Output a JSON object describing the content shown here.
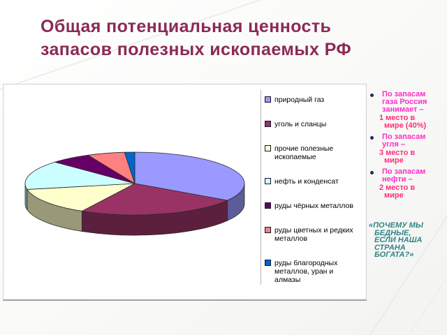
{
  "title": {
    "line1": "Общая потенциальная ценность",
    "line2": "запасов полезных ископаемых РФ"
  },
  "chart_data": {
    "type": "pie",
    "projection": "3d",
    "legend_position": "right",
    "data_labels": false,
    "slices": [
      {
        "label": "природный газ",
        "value": 34,
        "color": "#9999FF"
      },
      {
        "label": "уголь и сланцы",
        "value": 24,
        "color": "#993366"
      },
      {
        "label": "прочие полезные ископаемые",
        "value": 14,
        "color": "#FFFFCC"
      },
      {
        "label": "нефть и конденсат",
        "value": 15,
        "color": "#CCFFFF"
      },
      {
        "label": "руды чёрных металлов",
        "value": 6,
        "color": "#660066"
      },
      {
        "label": "руды цветных и редких металлов",
        "value": 5.5,
        "color": "#FF8080"
      },
      {
        "label": "руды благородных металлов, уран и алмазы",
        "value": 1.5,
        "color": "#0066CC"
      }
    ]
  },
  "facts": [
    {
      "lead": "По запасам газа Россия занимает –",
      "detail": "1 место в мире (40%)"
    },
    {
      "lead": "По запасам угля –",
      "detail": "3 место в мире"
    },
    {
      "lead": "По запасам нефти –",
      "detail": "2 место в мире"
    }
  ],
  "quote": "«ПОЧЕМУ МЫ БЕДНЫЕ, ЕСЛИ НАША СТРАНА БОГАТА?»",
  "colors": {
    "title": "#8b2a56",
    "fact_lead": "#ff2dc8",
    "fact_detail": "#ff2d7d",
    "bullet": "#26265e",
    "quote": "#2f8486",
    "legend_text": "#000000",
    "chart_border": "#b5b5b5",
    "slice_outline": "#2a2a2a"
  }
}
